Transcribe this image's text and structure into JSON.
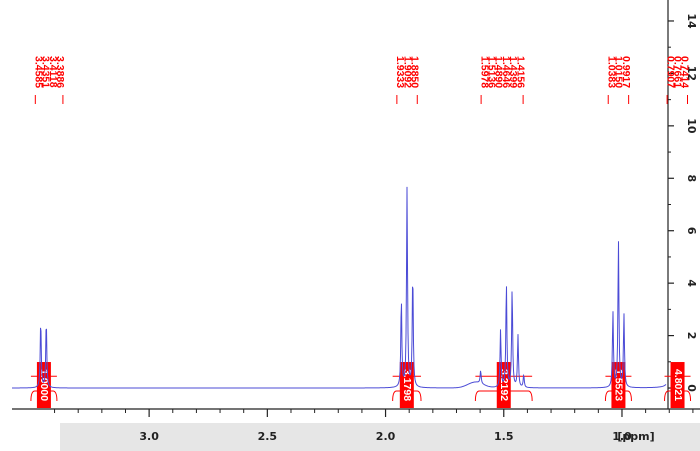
{
  "chart_data": {
    "type": "line",
    "xlabel": "[ppm]",
    "ylabel": "",
    "x_reversed": true,
    "xlim": [
      0.67,
      3.58
    ],
    "ylim": [
      -0.8,
      14.8
    ],
    "x_ticks": [
      {
        "value": 3.0,
        "label": "3.0"
      },
      {
        "value": 2.5,
        "label": "2.5"
      },
      {
        "value": 2.0,
        "label": "2.0"
      },
      {
        "value": 1.5,
        "label": "1.5"
      },
      {
        "value": 1.0,
        "label": "1.0"
      }
    ],
    "y_ticks": [
      {
        "value": 0,
        "label": "0"
      },
      {
        "value": 2,
        "label": "2"
      },
      {
        "value": 4,
        "label": "4"
      },
      {
        "value": 6,
        "label": "6"
      },
      {
        "value": 8,
        "label": "8"
      },
      {
        "value": 10,
        "label": "10"
      },
      {
        "value": 12,
        "label": "12"
      },
      {
        "value": 14,
        "label": "14"
      }
    ],
    "peaks": [
      {
        "shift": 3.4585,
        "height": 2.6
      },
      {
        "shift": 3.4351,
        "height": 2.6
      },
      {
        "shift": 1.9333,
        "height": 3.4
      },
      {
        "shift": 1.9092,
        "height": 7.6
      },
      {
        "shift": 1.885,
        "height": 4.4
      },
      {
        "shift": 1.5978,
        "height": 0.5
      },
      {
        "shift": 1.5136,
        "height": 2.2
      },
      {
        "shift": 1.489,
        "height": 4.0
      },
      {
        "shift": 1.4646,
        "height": 3.8
      },
      {
        "shift": 1.4399,
        "height": 2.0
      },
      {
        "shift": 1.4156,
        "height": 0.5
      },
      {
        "shift": 1.0383,
        "height": 2.9
      },
      {
        "shift": 1.015,
        "height": 5.6
      },
      {
        "shift": 0.9917,
        "height": 2.8
      },
      {
        "shift": 0.7907,
        "height": 7.7
      },
      {
        "shift": 0.7661,
        "height": 14.8
      },
      {
        "shift": 0.7414,
        "height": 6.6
      }
    ],
    "peak_label_groups": [
      [
        "3.4585",
        "3.4351",
        "3.4118",
        "3.3886"
      ],
      [
        "1.9333",
        "1.9092",
        "1.8850"
      ],
      [
        "1.5978",
        "1.5136",
        "1.4890",
        "1.4646",
        "1.4399",
        "1.4156"
      ],
      [
        "1.0383",
        "1.0150",
        "0.9917"
      ],
      [
        "0.7907",
        "0.7661",
        "0.7414"
      ]
    ],
    "integrals": [
      {
        "from": 3.5,
        "to": 3.39,
        "value": "1.0000"
      },
      {
        "from": 1.97,
        "to": 1.85,
        "value": "3.1798"
      },
      {
        "from": 1.62,
        "to": 1.38,
        "value": "3.2192"
      },
      {
        "from": 1.07,
        "to": 0.96,
        "value": "1.5523"
      },
      {
        "from": 0.82,
        "to": 0.71,
        "value": "4.8021"
      }
    ],
    "colors": {
      "spectrum": "#4b4bd6",
      "annotation": "#ff0000",
      "axis": "#222222",
      "footer_band": "#e6e6e6"
    }
  }
}
